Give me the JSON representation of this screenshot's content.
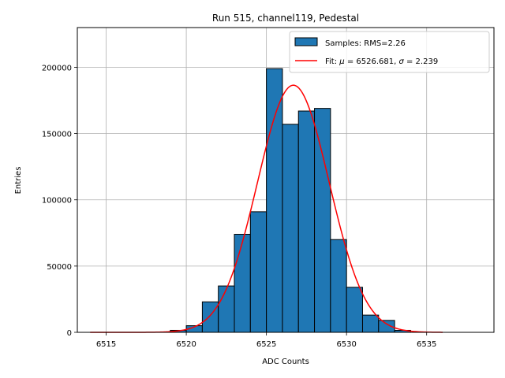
{
  "chart_data": {
    "type": "bar",
    "title": "Run 515, channel119, Pedestal",
    "xlabel": "ADC Counts",
    "ylabel": "Entries",
    "xlim": [
      6513.2,
      6539.2
    ],
    "ylim": [
      0,
      230000
    ],
    "xticks": [
      6515,
      6520,
      6525,
      6530,
      6535
    ],
    "yticks": [
      0,
      50000,
      100000,
      150000,
      200000
    ],
    "grid": true,
    "legend_position": "top-right",
    "colors": {
      "bars": "#1f77b4",
      "fit": "#ff0000",
      "edge": "#000000"
    },
    "histogram": {
      "name": "Samples: RMS=2.26",
      "bin_edges": [
        6519,
        6520,
        6521,
        6522,
        6523,
        6524,
        6525,
        6526,
        6527,
        6528,
        6529,
        6530,
        6531,
        6532,
        6533,
        6534
      ],
      "counts": [
        1500,
        5000,
        23000,
        35000,
        74000,
        91000,
        199000,
        157000,
        167000,
        169000,
        70000,
        34000,
        13000,
        9000,
        1500
      ]
    },
    "fit": {
      "name_prefix": "Fit: ",
      "name_mid": " = 6526.681, ",
      "name_suffix": " = 2.239",
      "mu_symbol": "μ",
      "sigma_symbol": "σ",
      "mu": 6526.681,
      "sigma": 2.239,
      "amplitude": 186500,
      "x_range": [
        6514,
        6536
      ]
    }
  }
}
